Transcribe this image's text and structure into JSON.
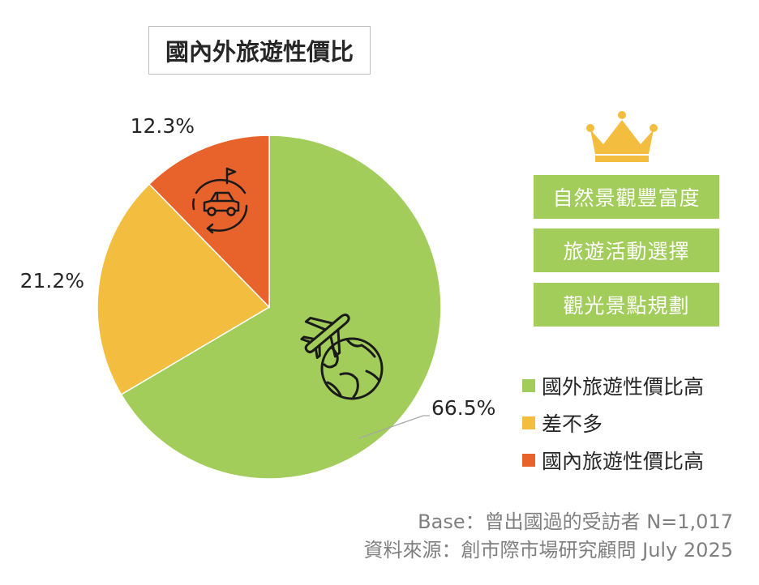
{
  "title": "國內外旅遊性價比",
  "chart_data": {
    "type": "pie",
    "start_angle_deg": 0,
    "direction": "clockwise",
    "slices": [
      {
        "label": "國外旅遊性價比高",
        "value": 66.5,
        "display": "66.5%",
        "color": "#a2cd5a"
      },
      {
        "label": "差不多",
        "value": 21.2,
        "display": "21.2%",
        "color": "#f3be3f"
      },
      {
        "label": "國內旅遊性價比高",
        "value": 12.3,
        "display": "12.3%",
        "color": "#e8622c"
      }
    ],
    "legend_position": "right"
  },
  "icons": {
    "domestic": "car-round-trip-icon",
    "overseas": "airplane-globe-icon",
    "crown": "crown-icon"
  },
  "tags": [
    {
      "label": "自然景觀豐富度"
    },
    {
      "label": "旅遊活動選擇"
    },
    {
      "label": "觀光景點規劃"
    }
  ],
  "footer": {
    "base": "Base：曾出國過的受訪者 N=1,017",
    "source": "資料來源：創市際市場研究顧問 July 2025"
  }
}
